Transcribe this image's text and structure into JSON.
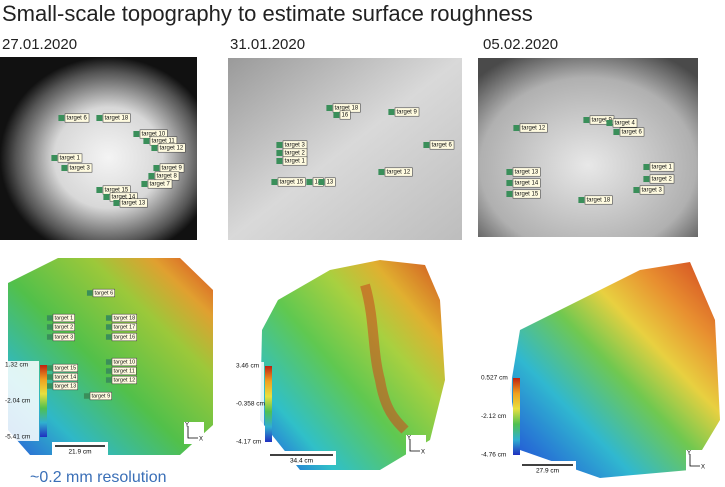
{
  "title": "Small-scale topography to estimate surface roughness",
  "photos": [
    {
      "date": "27.01.2020",
      "targets": [
        "target 6",
        "target 18",
        "target 10",
        "target 11",
        "target 12",
        "target 1",
        "target 3",
        "target 9",
        "target 8",
        "target 7",
        "target 15",
        "target 14",
        "target 13"
      ]
    },
    {
      "date": "31.01.2020",
      "targets": [
        "target 18",
        "16",
        "target 9",
        "target 3",
        "target 2",
        "target 1",
        "target 6",
        "target 15",
        "14",
        "13",
        "target 12"
      ]
    },
    {
      "date": "05.02.2020",
      "targets": [
        "target 12",
        "target 9",
        "target 4",
        "target 6",
        "target 13",
        "target 14",
        "target 15",
        "target 1",
        "target 2",
        "target 3",
        "target 18"
      ]
    }
  ],
  "dems": [
    {
      "targets": [
        "target 6",
        "target 1",
        "target 2",
        "target 3",
        "target 18",
        "target 17",
        "target 16",
        "target 10",
        "target 11",
        "target 12",
        "target 15",
        "target 14",
        "target 13",
        "target 9"
      ],
      "colorbar": [
        "1.32 cm",
        "-2.04 cm",
        "-5.41 cm"
      ],
      "scale_bar": "21.9 cm",
      "axes": [
        "Y",
        "X"
      ]
    },
    {
      "targets": [],
      "colorbar": [
        "3.46 cm",
        "-0.358 cm",
        "-4.17 cm"
      ],
      "scale_bar": "34.4 cm",
      "axes": [
        "Y",
        "X"
      ]
    },
    {
      "targets": [],
      "colorbar": [
        "0.527 cm",
        "-2.12 cm",
        "-4.76 cm"
      ],
      "scale_bar": "27.9 cm",
      "axes": [
        "Y",
        "X"
      ]
    }
  ],
  "note": "~0.2 mm resolution"
}
